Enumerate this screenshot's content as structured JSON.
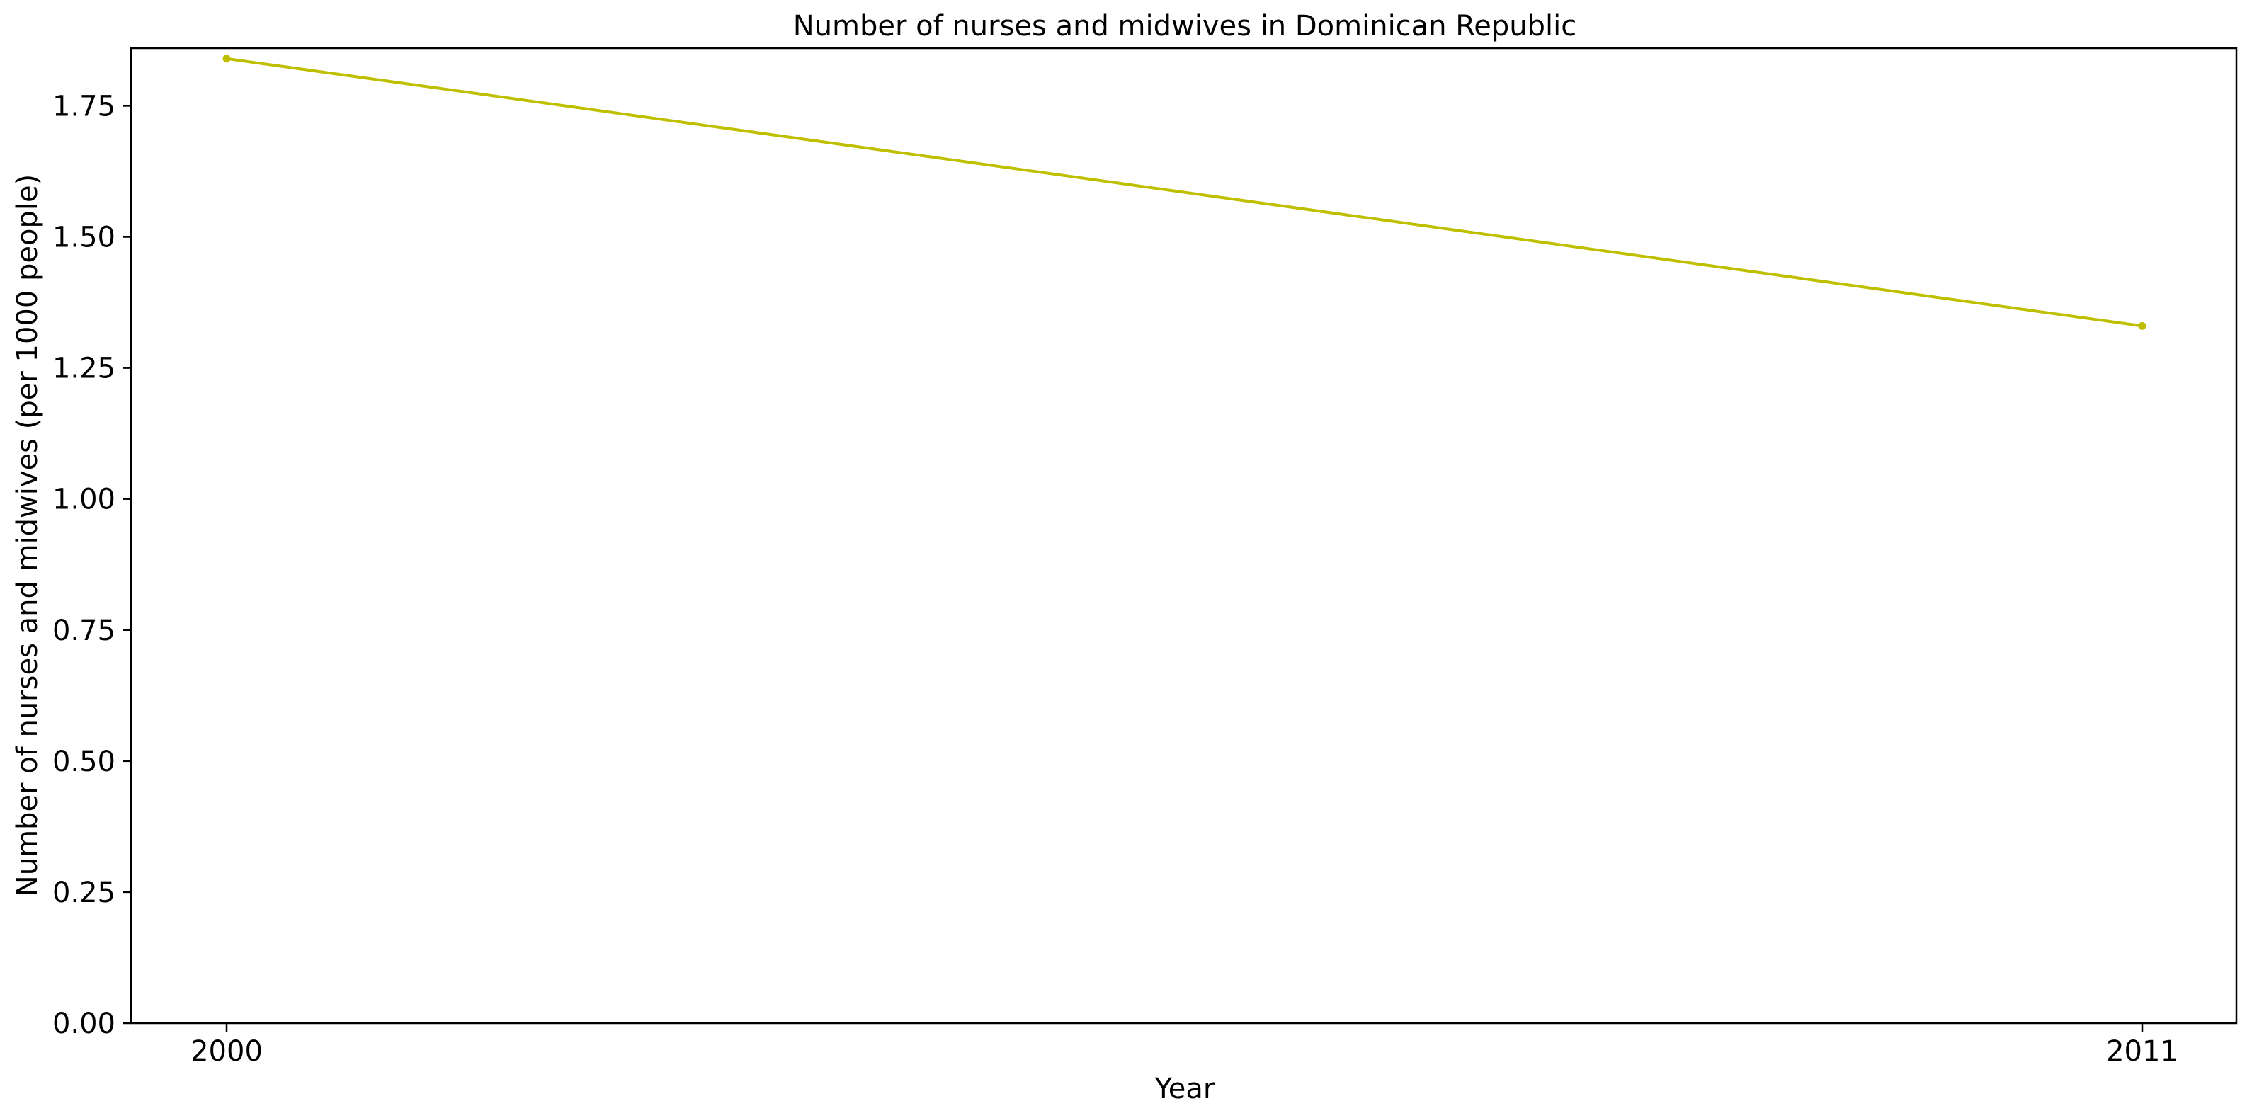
{
  "chart_data": {
    "type": "line",
    "title": "Number of nurses and midwives in Dominican Republic",
    "xlabel": "Year",
    "ylabel": "Number of nurses and midwives (per 1000 people)",
    "x": [
      "2000",
      "2011"
    ],
    "series": [
      {
        "values": [
          1.84,
          1.33
        ],
        "color": "#bfbf00"
      }
    ],
    "ylim": [
      0,
      1.86
    ],
    "yticks": [
      "0.00",
      "0.25",
      "0.50",
      "0.75",
      "1.00",
      "1.25",
      "1.50",
      "1.75"
    ],
    "grid": false,
    "legend": "none"
  }
}
